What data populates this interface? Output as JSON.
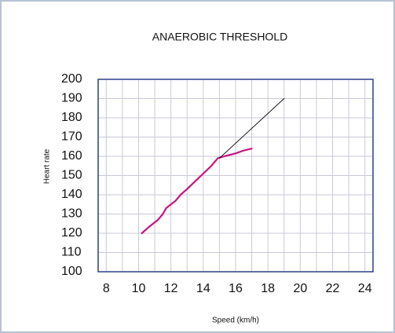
{
  "chart_data": {
    "type": "line",
    "title": "ANAEROBIC THRESHOLD",
    "xlabel": "Speed (km/h)",
    "ylabel": "Heart rate",
    "xlim": [
      7.5,
      24.5
    ],
    "xticks": [
      8,
      10,
      12,
      14,
      16,
      18,
      20,
      22,
      24
    ],
    "xminorticks": [
      9,
      11,
      13,
      15,
      17,
      19,
      21,
      23
    ],
    "ylim": [
      100,
      200
    ],
    "yticks": [
      100,
      110,
      120,
      130,
      140,
      150,
      160,
      170,
      180,
      190,
      200
    ],
    "grid": true,
    "series": [
      {
        "color": "#c8157f",
        "width": 2.2,
        "x": [
          10.2,
          10.6,
          11.2,
          11.5,
          11.7,
          12.0,
          12.3,
          12.6,
          13.0,
          13.5,
          14.0,
          14.5,
          14.9,
          15.3,
          16.0,
          16.5,
          17.0
        ],
        "values": [
          120,
          123,
          127,
          130,
          133,
          135,
          137,
          140,
          143,
          147,
          151,
          155,
          159,
          160,
          161.5,
          163,
          164
        ]
      },
      {
        "color": "#000000",
        "width": 0.9,
        "x": [
          15.0,
          19.0
        ],
        "values": [
          159,
          190
        ]
      }
    ]
  }
}
